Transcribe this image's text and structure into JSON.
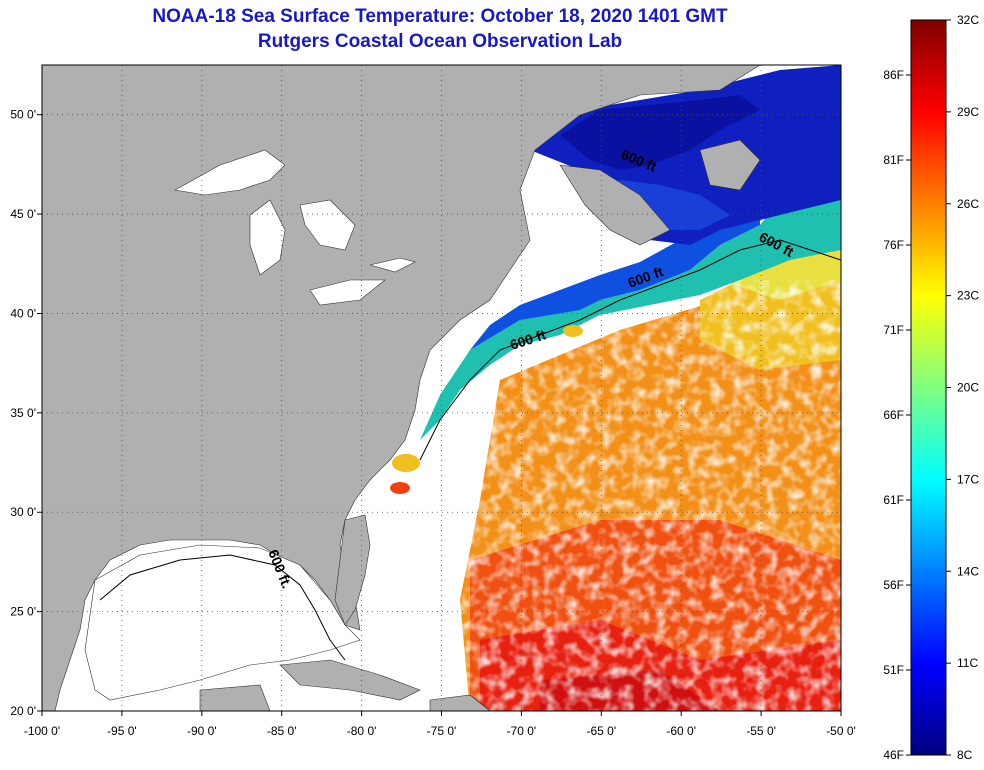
{
  "header": {
    "title": "NOAA-18 Sea Surface Temperature:  October 18, 2020 1401 GMT",
    "subtitle": "Rutgers Coastal Ocean Observation Lab"
  },
  "map": {
    "lon_range": [
      -100,
      -50
    ],
    "lat_range": [
      20,
      52.5
    ],
    "lon_ticks": [
      {
        "value": -100,
        "label": "-100 0'"
      },
      {
        "value": -95,
        "label": "-95 0'"
      },
      {
        "value": -90,
        "label": "-90 0'"
      },
      {
        "value": -85,
        "label": "-85 0'"
      },
      {
        "value": -80,
        "label": "-80 0'"
      },
      {
        "value": -75,
        "label": "-75 0'"
      },
      {
        "value": -70,
        "label": "-70 0'"
      },
      {
        "value": -65,
        "label": "-65 0'"
      },
      {
        "value": -60,
        "label": "-60 0'"
      },
      {
        "value": -55,
        "label": "-55 0'"
      },
      {
        "value": -50,
        "label": "-50 0'"
      }
    ],
    "lat_ticks": [
      {
        "value": 20,
        "label": "20 0'"
      },
      {
        "value": 25,
        "label": "25 0'"
      },
      {
        "value": 30,
        "label": "30 0'"
      },
      {
        "value": 35,
        "label": "35 0'"
      },
      {
        "value": 40,
        "label": "40 0'"
      },
      {
        "value": 45,
        "label": "45 0'"
      },
      {
        "value": 50,
        "label": "50 0'"
      }
    ],
    "contour_labels": [
      "600 ft",
      "600 ft",
      "600 ft",
      "600 ft",
      "600 ft."
    ],
    "colors": {
      "land": "#b0b0b0",
      "ocean_no_data": "#ffffff",
      "grid": "#505050"
    }
  },
  "colorbar": {
    "celsius_labels": [
      "32C",
      "29C",
      "26C",
      "23C",
      "20C",
      "17C",
      "14C",
      "11C",
      "8C"
    ],
    "fahrenheit_labels": [
      "86F",
      "81F",
      "76F",
      "71F",
      "66F",
      "61F",
      "56F",
      "51F",
      "46F"
    ],
    "colors": [
      "#800000",
      "#ff0000",
      "#ff8000",
      "#ffff00",
      "#80ff80",
      "#00ffff",
      "#0080ff",
      "#0000ff",
      "#000080"
    ]
  }
}
